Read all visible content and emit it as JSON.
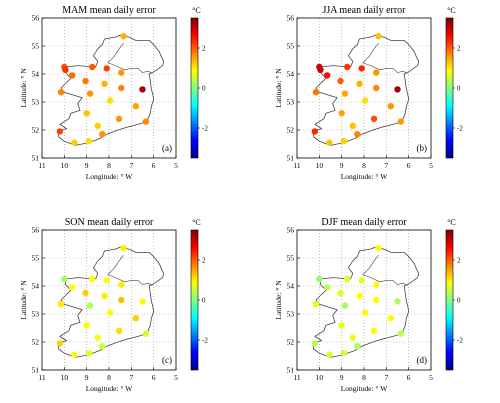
{
  "colors": {
    "colormap": [
      "#00008f",
      "#0000ff",
      "#0080ff",
      "#00ffff",
      "#80ff80",
      "#ffff00",
      "#ff8000",
      "#ff0000",
      "#800000"
    ],
    "coast": "#444444",
    "grid": "#9a9a9a"
  },
  "chart_data": [
    {
      "type": "scatter",
      "title": "MAM mean daily error",
      "panel_label": "(a)",
      "xlabel": "Longitude: ° W",
      "ylabel": "Latitude: ° N",
      "xlim": [
        11,
        5
      ],
      "ylim": [
        51,
        56
      ],
      "xticks": [
        11,
        10,
        9,
        8,
        7,
        6,
        5
      ],
      "yticks": [
        51,
        52,
        53,
        54,
        55,
        56
      ],
      "colorbar": {
        "unit": "°C",
        "range": [
          -3.5,
          3.5
        ],
        "ticks": [
          -2,
          0,
          2
        ]
      },
      "grid": true,
      "points": [
        {
          "x": 7.35,
          "y": 55.35,
          "value": 1.4
        },
        {
          "x": 10.0,
          "y": 54.25,
          "value": 2.1
        },
        {
          "x": 9.95,
          "y": 54.15,
          "value": 2.3
        },
        {
          "x": 9.65,
          "y": 53.95,
          "value": 1.9
        },
        {
          "x": 8.75,
          "y": 54.25,
          "value": 2.0
        },
        {
          "x": 8.1,
          "y": 54.2,
          "value": 2.2
        },
        {
          "x": 7.45,
          "y": 54.05,
          "value": 1.6
        },
        {
          "x": 9.05,
          "y": 53.75,
          "value": 1.8
        },
        {
          "x": 8.2,
          "y": 53.65,
          "value": 1.4
        },
        {
          "x": 7.45,
          "y": 53.5,
          "value": 1.7
        },
        {
          "x": 6.5,
          "y": 53.45,
          "value": 3.2
        },
        {
          "x": 10.15,
          "y": 53.35,
          "value": 1.7
        },
        {
          "x": 8.85,
          "y": 53.3,
          "value": 1.6
        },
        {
          "x": 7.95,
          "y": 53.05,
          "value": 1.1
        },
        {
          "x": 6.8,
          "y": 52.85,
          "value": 1.5
        },
        {
          "x": 9.0,
          "y": 52.6,
          "value": 1.3
        },
        {
          "x": 7.55,
          "y": 52.4,
          "value": 1.6
        },
        {
          "x": 6.35,
          "y": 52.3,
          "value": 1.7
        },
        {
          "x": 8.5,
          "y": 52.15,
          "value": 1.2
        },
        {
          "x": 10.2,
          "y": 51.95,
          "value": 2.2
        },
        {
          "x": 8.3,
          "y": 51.85,
          "value": 1.6
        },
        {
          "x": 8.9,
          "y": 51.6,
          "value": 1.1
        },
        {
          "x": 9.55,
          "y": 51.55,
          "value": 1.2
        }
      ]
    },
    {
      "type": "scatter",
      "title": "JJA mean daily error",
      "panel_label": "(b)",
      "xlabel": "Longitude: ° W",
      "ylabel": "Latitude: ° N",
      "xlim": [
        11,
        5
      ],
      "ylim": [
        51,
        56
      ],
      "xticks": [
        11,
        10,
        9,
        8,
        7,
        6,
        5
      ],
      "yticks": [
        51,
        52,
        53,
        54,
        55,
        56
      ],
      "colorbar": {
        "unit": "°C",
        "range": [
          -3.5,
          3.5
        ],
        "ticks": [
          -2,
          0,
          2
        ]
      },
      "grid": true,
      "points": [
        {
          "x": 7.35,
          "y": 55.35,
          "value": 1.3
        },
        {
          "x": 10.0,
          "y": 54.25,
          "value": 2.9
        },
        {
          "x": 9.95,
          "y": 54.15,
          "value": 3.0
        },
        {
          "x": 9.65,
          "y": 53.95,
          "value": 2.6
        },
        {
          "x": 8.75,
          "y": 54.25,
          "value": 2.3
        },
        {
          "x": 8.1,
          "y": 54.2,
          "value": 2.4
        },
        {
          "x": 7.45,
          "y": 54.05,
          "value": 1.6
        },
        {
          "x": 9.05,
          "y": 53.75,
          "value": 2.0
        },
        {
          "x": 8.2,
          "y": 53.65,
          "value": 1.4
        },
        {
          "x": 7.45,
          "y": 53.5,
          "value": 1.7
        },
        {
          "x": 6.5,
          "y": 53.45,
          "value": 3.3
        },
        {
          "x": 10.15,
          "y": 53.35,
          "value": 1.8
        },
        {
          "x": 8.85,
          "y": 53.3,
          "value": 1.5
        },
        {
          "x": 7.95,
          "y": 53.05,
          "value": 1.1
        },
        {
          "x": 6.8,
          "y": 52.85,
          "value": 1.6
        },
        {
          "x": 9.0,
          "y": 52.6,
          "value": 1.5
        },
        {
          "x": 7.55,
          "y": 52.4,
          "value": 2.1
        },
        {
          "x": 6.35,
          "y": 52.3,
          "value": 1.6
        },
        {
          "x": 8.5,
          "y": 52.15,
          "value": 1.3
        },
        {
          "x": 10.2,
          "y": 51.95,
          "value": 2.4
        },
        {
          "x": 8.3,
          "y": 51.85,
          "value": 1.7
        },
        {
          "x": 8.9,
          "y": 51.6,
          "value": 1.2
        },
        {
          "x": 9.55,
          "y": 51.55,
          "value": 1.3
        }
      ]
    },
    {
      "type": "scatter",
      "title": "SON mean daily error",
      "panel_label": "(c)",
      "xlabel": "Longitude: ° W",
      "ylabel": "Latitude: ° N",
      "xlim": [
        11,
        5
      ],
      "ylim": [
        51,
        56
      ],
      "xticks": [
        11,
        10,
        9,
        8,
        7,
        6,
        5
      ],
      "yticks": [
        51,
        52,
        53,
        54,
        55,
        56
      ],
      "colorbar": {
        "unit": "°C",
        "range": [
          -3.5,
          3.5
        ],
        "ticks": [
          -2,
          0,
          2
        ]
      },
      "grid": true,
      "points": [
        {
          "x": 7.35,
          "y": 55.35,
          "value": 1.0
        },
        {
          "x": 10.0,
          "y": 54.25,
          "value": 0.2
        },
        {
          "x": 9.65,
          "y": 53.95,
          "value": 0.9
        },
        {
          "x": 8.75,
          "y": 54.25,
          "value": 0.8
        },
        {
          "x": 8.1,
          "y": 54.2,
          "value": 0.9
        },
        {
          "x": 7.45,
          "y": 54.05,
          "value": 1.0
        },
        {
          "x": 9.05,
          "y": 53.75,
          "value": 1.2
        },
        {
          "x": 8.2,
          "y": 53.65,
          "value": 1.0
        },
        {
          "x": 7.45,
          "y": 53.5,
          "value": 1.3
        },
        {
          "x": 6.5,
          "y": 53.45,
          "value": 0.9
        },
        {
          "x": 10.15,
          "y": 53.35,
          "value": 1.0
        },
        {
          "x": 8.85,
          "y": 53.3,
          "value": 0.3
        },
        {
          "x": 7.95,
          "y": 53.05,
          "value": 0.8
        },
        {
          "x": 6.8,
          "y": 52.85,
          "value": 1.2
        },
        {
          "x": 9.0,
          "y": 52.6,
          "value": 0.9
        },
        {
          "x": 7.55,
          "y": 52.4,
          "value": 1.1
        },
        {
          "x": 6.35,
          "y": 52.3,
          "value": 0.6
        },
        {
          "x": 8.5,
          "y": 52.15,
          "value": 0.8
        },
        {
          "x": 10.2,
          "y": 51.95,
          "value": 1.2
        },
        {
          "x": 8.3,
          "y": 51.85,
          "value": 0.5
        },
        {
          "x": 8.9,
          "y": 51.6,
          "value": 0.7
        },
        {
          "x": 9.55,
          "y": 51.55,
          "value": 0.8
        }
      ]
    },
    {
      "type": "scatter",
      "title": "DJF mean daily error",
      "panel_label": "(d)",
      "xlabel": "Longitude: ° W",
      "ylabel": "Latitude: ° N",
      "xlim": [
        11,
        5
      ],
      "ylim": [
        51,
        56
      ],
      "xticks": [
        11,
        10,
        9,
        8,
        7,
        6,
        5
      ],
      "yticks": [
        51,
        52,
        53,
        54,
        55,
        56
      ],
      "colorbar": {
        "unit": "°C",
        "range": [
          -3.5,
          3.5
        ],
        "ticks": [
          -2,
          0,
          2
        ]
      },
      "grid": true,
      "points": [
        {
          "x": 7.35,
          "y": 55.35,
          "value": 0.9
        },
        {
          "x": 10.0,
          "y": 54.25,
          "value": 0.1
        },
        {
          "x": 9.65,
          "y": 53.95,
          "value": 0.4
        },
        {
          "x": 8.75,
          "y": 54.25,
          "value": 0.6
        },
        {
          "x": 8.1,
          "y": 54.2,
          "value": 0.7
        },
        {
          "x": 7.45,
          "y": 54.05,
          "value": 0.8
        },
        {
          "x": 9.05,
          "y": 53.75,
          "value": 0.6
        },
        {
          "x": 8.2,
          "y": 53.65,
          "value": 0.9
        },
        {
          "x": 7.45,
          "y": 53.5,
          "value": 0.9
        },
        {
          "x": 6.5,
          "y": 53.45,
          "value": 0.3
        },
        {
          "x": 10.15,
          "y": 53.35,
          "value": 0.7
        },
        {
          "x": 8.85,
          "y": 53.3,
          "value": 0.2
        },
        {
          "x": 7.95,
          "y": 53.05,
          "value": 0.8
        },
        {
          "x": 6.8,
          "y": 52.85,
          "value": 0.9
        },
        {
          "x": 9.0,
          "y": 52.6,
          "value": 0.7
        },
        {
          "x": 7.55,
          "y": 52.4,
          "value": 0.9
        },
        {
          "x": 6.35,
          "y": 52.3,
          "value": 0.4
        },
        {
          "x": 8.5,
          "y": 52.15,
          "value": 0.7
        },
        {
          "x": 10.2,
          "y": 51.95,
          "value": 0.4
        },
        {
          "x": 8.3,
          "y": 51.85,
          "value": 0.3
        },
        {
          "x": 8.9,
          "y": 51.6,
          "value": 0.5
        },
        {
          "x": 9.55,
          "y": 51.55,
          "value": 0.6
        }
      ]
    }
  ]
}
